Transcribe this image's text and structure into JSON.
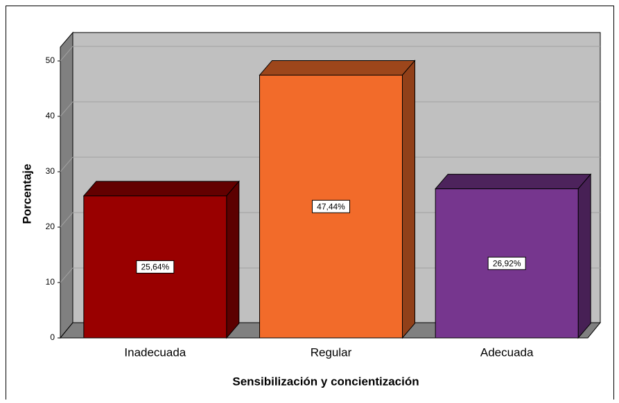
{
  "chart_data": {
    "type": "bar3d",
    "x_label": "Sensibilización y concientización",
    "y_label": "Porcentaje",
    "categories": [
      "Inadecuada",
      "Regular",
      "Adecuada"
    ],
    "values": [
      25.64,
      47.44,
      26.92
    ],
    "value_labels": [
      "25,64%",
      "47,44%",
      "26,92%"
    ],
    "colors": [
      "#990000",
      "#f26b2a",
      "#76368e"
    ],
    "ylim": [
      0,
      52.5
    ],
    "yticks": [
      0,
      10,
      20,
      30,
      40,
      50
    ],
    "grid": true
  }
}
